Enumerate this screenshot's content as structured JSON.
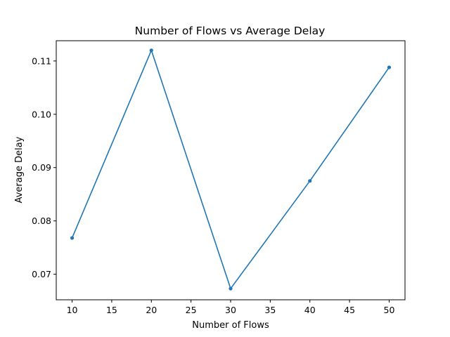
{
  "chart_data": {
    "type": "line",
    "title": "Number of Flows vs Average Delay",
    "xlabel": "Number of Flows",
    "ylabel": "Average Delay",
    "xlim": [
      8,
      52
    ],
    "ylim": [
      0.0652,
      0.1138
    ],
    "xticks": [
      10,
      15,
      20,
      25,
      30,
      35,
      40,
      45,
      50
    ],
    "yticks": [
      0.07,
      0.08,
      0.09,
      0.1,
      0.11
    ],
    "ytick_labels": [
      "0.07",
      "0.08",
      "0.09",
      "0.10",
      "0.11"
    ],
    "grid": false,
    "series": [
      {
        "x": [
          10,
          20,
          30,
          40,
          50
        ],
        "y": [
          0.0768,
          0.112,
          0.0673,
          0.0875,
          0.1088
        ],
        "color": "#1f77b4",
        "marker": "point"
      }
    ]
  }
}
